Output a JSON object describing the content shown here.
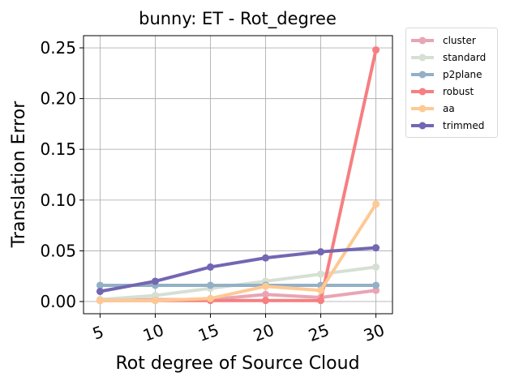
{
  "chart_data": {
    "type": "line",
    "title": "bunny: ET - Rot_degree",
    "xlabel": "Rot degree of Source Cloud",
    "ylabel": "Translation Error",
    "x": [
      5,
      10,
      15,
      20,
      25,
      30
    ],
    "x_tick_labels": [
      "5",
      "10",
      "15",
      "20",
      "25",
      "30"
    ],
    "xlim": [
      3.5,
      31.5
    ],
    "ylim": [
      -0.012,
      0.262
    ],
    "y_ticks": [
      0.0,
      0.05,
      0.1,
      0.15,
      0.2,
      0.25
    ],
    "y_tick_labels": [
      "0.00",
      "0.05",
      "0.10",
      "0.15",
      "0.20",
      "0.25"
    ],
    "grid": true,
    "legend_position": "outside-top-right",
    "series": [
      {
        "name": "cluster",
        "color": "#e8a5b3",
        "values": [
          0.001,
          0.002,
          0.002,
          0.007,
          0.004,
          0.011
        ]
      },
      {
        "name": "standard",
        "color": "#d5e0d3",
        "values": [
          0.002,
          0.006,
          0.013,
          0.02,
          0.027,
          0.034
        ]
      },
      {
        "name": "p2plane",
        "color": "#93b0c6",
        "values": [
          0.016,
          0.016,
          0.016,
          0.016,
          0.016,
          0.016
        ]
      },
      {
        "name": "robust",
        "color": "#f67f81",
        "values": [
          0.001,
          0.001,
          0.001,
          0.001,
          0.001,
          0.248
        ]
      },
      {
        "name": "aa",
        "color": "#fec993",
        "values": [
          0.001,
          0.001,
          0.003,
          0.015,
          0.011,
          0.096
        ]
      },
      {
        "name": "trimmed",
        "color": "#7366b3",
        "values": [
          0.01,
          0.02,
          0.034,
          0.043,
          0.049,
          0.053
        ]
      }
    ]
  }
}
